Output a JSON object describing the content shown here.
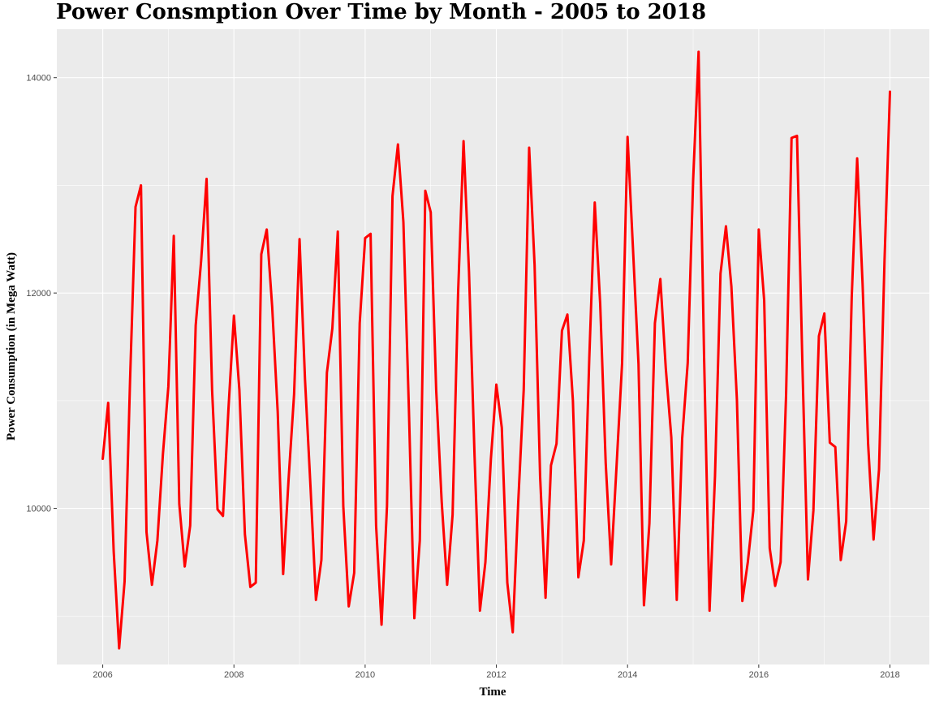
{
  "chart_data": {
    "type": "line",
    "title": "Power Consmption Over Time by Month - 2005 to 2018",
    "xlabel": "Time",
    "ylabel": "Power Consumption (in Mega Watt)",
    "xlim": [
      2005.3,
      2018.6
    ],
    "ylim": [
      8550,
      14450
    ],
    "x_ticks": [
      2006,
      2008,
      2010,
      2012,
      2014,
      2016,
      2018
    ],
    "y_ticks": [
      10000,
      12000,
      14000
    ],
    "grid": true,
    "background": "#EBEBEB",
    "line_color": "#FF0000",
    "series": [
      {
        "x": [
          2006.0,
          2006.083,
          2006.167,
          2006.25,
          2006.333,
          2006.417,
          2006.5,
          2006.583,
          2006.667,
          2006.75,
          2006.833,
          2006.917,
          2007.0,
          2007.083,
          2007.167,
          2007.25,
          2007.333,
          2007.417,
          2007.5,
          2007.583,
          2007.667,
          2007.75,
          2007.833,
          2007.917,
          2008.0,
          2008.083,
          2008.167,
          2008.25,
          2008.333,
          2008.417,
          2008.5,
          2008.583,
          2008.667,
          2008.75,
          2008.833,
          2008.917,
          2009.0,
          2009.083,
          2009.167,
          2009.25,
          2009.333,
          2009.417,
          2009.5,
          2009.583,
          2009.667,
          2009.75,
          2009.833,
          2009.917,
          2010.0,
          2010.083,
          2010.167,
          2010.25,
          2010.333,
          2010.417,
          2010.5,
          2010.583,
          2010.667,
          2010.75,
          2010.833,
          2010.917,
          2011.0,
          2011.083,
          2011.167,
          2011.25,
          2011.333,
          2011.417,
          2011.5,
          2011.583,
          2011.667,
          2011.75,
          2011.833,
          2011.917,
          2012.0,
          2012.083,
          2012.167,
          2012.25,
          2012.333,
          2012.417,
          2012.5,
          2012.583,
          2012.667,
          2012.75,
          2012.833,
          2012.917,
          2013.0,
          2013.083,
          2013.167,
          2013.25,
          2013.333,
          2013.417,
          2013.5,
          2013.583,
          2013.667,
          2013.75,
          2013.833,
          2013.917,
          2014.0,
          2014.083,
          2014.167,
          2014.25,
          2014.333,
          2014.417,
          2014.5,
          2014.583,
          2014.667,
          2014.75,
          2014.833,
          2014.917,
          2015.0,
          2015.083,
          2015.167,
          2015.25,
          2015.333,
          2015.417,
          2015.5,
          2015.583,
          2015.667,
          2015.75,
          2015.833,
          2015.917,
          2016.0,
          2016.083,
          2016.167,
          2016.25,
          2016.333,
          2016.417,
          2016.5,
          2016.583,
          2016.667,
          2016.75,
          2016.833,
          2016.917,
          2017.0,
          2017.083,
          2017.167,
          2017.25,
          2017.333,
          2017.417,
          2017.5,
          2017.583,
          2017.667,
          2017.75,
          2017.833,
          2017.917,
          2018.0
        ],
        "values": [
          10460,
          10980,
          9600,
          8700,
          9320,
          11200,
          12800,
          13000,
          9780,
          9290,
          9700,
          10500,
          11130,
          12530,
          10040,
          9460,
          9840,
          11700,
          12300,
          13060,
          11100,
          9990,
          9930,
          10930,
          11790,
          11100,
          9760,
          9270,
          9310,
          12360,
          12590,
          11870,
          10900,
          9390,
          10270,
          11060,
          12500,
          11200,
          10200,
          9150,
          9520,
          11260,
          11670,
          12570,
          10020,
          9090,
          9400,
          11720,
          12510,
          12550,
          9840,
          8920,
          10020,
          12900,
          13380,
          12660,
          10920,
          8980,
          9700,
          12950,
          12750,
          11100,
          10060,
          9290,
          9940,
          12000,
          13410,
          12200,
          10500,
          9050,
          9500,
          10460,
          11150,
          10750,
          9310,
          8850,
          10050,
          11100,
          13350,
          12260,
          10300,
          9170,
          10400,
          10600,
          11650,
          11800,
          11000,
          9360,
          9700,
          11400,
          12840,
          11900,
          10420,
          9480,
          10400,
          11350,
          13450,
          12410,
          11340,
          9100,
          9860,
          11720,
          12130,
          11300,
          10660,
          9150,
          10650,
          11350,
          13050,
          14240,
          11400,
          9050,
          10300,
          12180,
          12620,
          12060,
          11010,
          9140,
          9500,
          9980,
          12590,
          11930,
          9630,
          9280,
          9500,
          11060,
          13440,
          13460,
          11300,
          9340,
          9980,
          11600,
          11810,
          10610,
          10570,
          9520,
          9880,
          11960,
          13250,
          12080,
          10600,
          9710,
          10360,
          12300,
          13870
        ]
      }
    ]
  }
}
